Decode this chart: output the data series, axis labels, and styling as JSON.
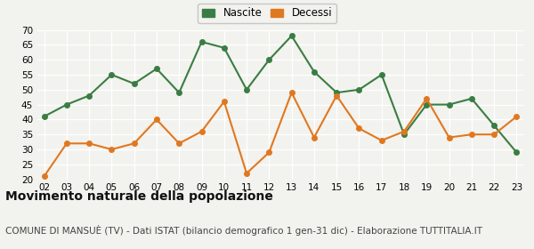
{
  "years": [
    "02",
    "03",
    "04",
    "05",
    "06",
    "07",
    "08",
    "09",
    "10",
    "11",
    "12",
    "13",
    "14",
    "15",
    "16",
    "17",
    "18",
    "19",
    "20",
    "21",
    "22",
    "23"
  ],
  "nascite": [
    41,
    45,
    48,
    55,
    52,
    57,
    49,
    66,
    64,
    50,
    60,
    68,
    56,
    49,
    50,
    55,
    35,
    45,
    45,
    47,
    38,
    29
  ],
  "decessi": [
    21,
    32,
    32,
    30,
    32,
    40,
    32,
    36,
    46,
    22,
    29,
    49,
    34,
    48,
    37,
    33,
    36,
    47,
    34,
    35,
    35,
    41
  ],
  "nascite_color": "#3a7d44",
  "decessi_color": "#e07820",
  "background_color": "#f2f2ee",
  "grid_color": "#ffffff",
  "ylim": [
    20,
    70
  ],
  "yticks": [
    20,
    25,
    30,
    35,
    40,
    45,
    50,
    55,
    60,
    65,
    70
  ],
  "title": "Movimento naturale della popolazione",
  "subtitle": "COMUNE DI MANSUÈ (TV) - Dati ISTAT (bilancio demografico 1 gen-31 dic) - Elaborazione TUTTITALIA.IT",
  "legend_nascite": "Nascite",
  "legend_decessi": "Decessi",
  "title_fontsize": 10,
  "subtitle_fontsize": 7.5,
  "marker_size": 4,
  "line_width": 1.5
}
